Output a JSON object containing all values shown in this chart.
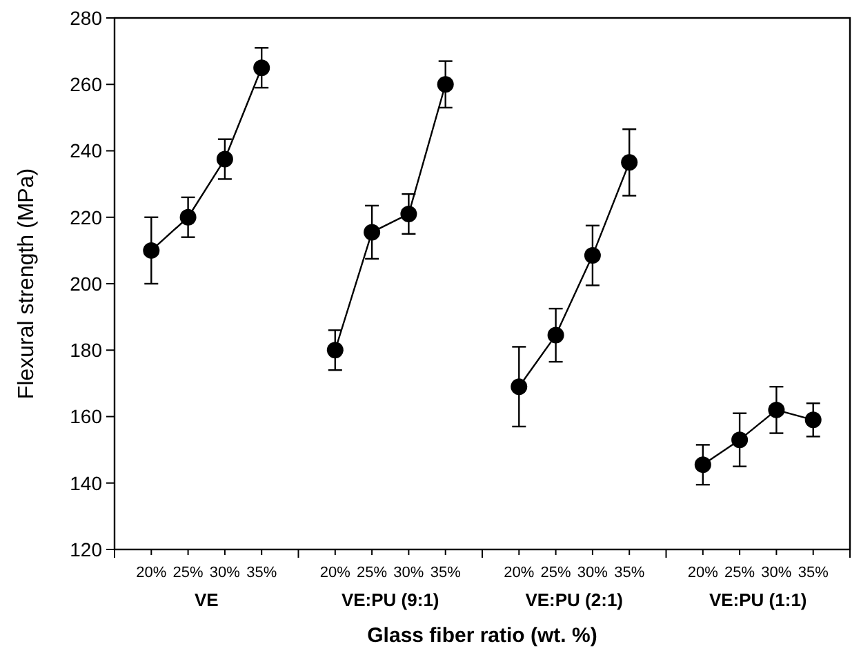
{
  "chart_data": {
    "type": "line",
    "xlabel": "Glass fiber ratio (wt. %)",
    "ylabel": "Flexural strength (MPa)",
    "categories": [
      "20%",
      "25%",
      "30%",
      "35%",
      null,
      "20%",
      "25%",
      "30%",
      "35%",
      null,
      "20%",
      "25%",
      "30%",
      "35%",
      null,
      "20%",
      "25%",
      "30%",
      "35%"
    ],
    "series": [
      {
        "color": "#000000",
        "values": [
          210,
          220,
          237.5,
          265,
          null,
          null,
          null,
          null,
          null,
          null,
          null,
          null,
          null,
          null,
          null,
          null,
          null,
          null,
          null
        ],
        "errors": [
          10,
          6,
          6,
          6,
          null,
          null,
          null,
          null,
          null,
          null,
          null,
          null,
          null,
          null,
          null,
          null,
          null,
          null,
          null
        ]
      },
      {
        "color": "#000000",
        "values": [
          null,
          null,
          null,
          null,
          null,
          180,
          215.5,
          221,
          260,
          null,
          null,
          null,
          null,
          null,
          null,
          null,
          null,
          null,
          null
        ],
        "errors": [
          null,
          null,
          null,
          null,
          null,
          6,
          8,
          6,
          7,
          null,
          null,
          null,
          null,
          null,
          null,
          null,
          null,
          null,
          null
        ]
      },
      {
        "color": "#000000",
        "values": [
          null,
          null,
          null,
          null,
          null,
          null,
          null,
          null,
          null,
          null,
          169,
          184.5,
          208.5,
          236.5,
          null,
          null,
          null,
          null,
          null
        ],
        "errors": [
          null,
          null,
          null,
          null,
          null,
          null,
          null,
          null,
          null,
          null,
          12,
          8,
          9,
          10,
          null,
          null,
          null,
          null,
          null
        ]
      },
      {
        "color": "#000000",
        "values": [
          null,
          null,
          null,
          null,
          null,
          null,
          null,
          null,
          null,
          null,
          null,
          null,
          null,
          null,
          null,
          145.5,
          153,
          162,
          159
        ],
        "errors": [
          null,
          null,
          null,
          null,
          null,
          null,
          null,
          null,
          null,
          null,
          null,
          null,
          null,
          null,
          null,
          6,
          8,
          7,
          5
        ]
      }
    ],
    "annotations": [
      "VE",
      "VE:PU (9:1)",
      "VE:PU (2:1)",
      "VE:PU (1:1)"
    ],
    "ylim": [
      120,
      280
    ],
    "yticks": [
      120,
      140,
      160,
      180,
      200,
      220,
      240,
      260,
      280
    ],
    "marker": "circle",
    "line_style": "solid"
  }
}
